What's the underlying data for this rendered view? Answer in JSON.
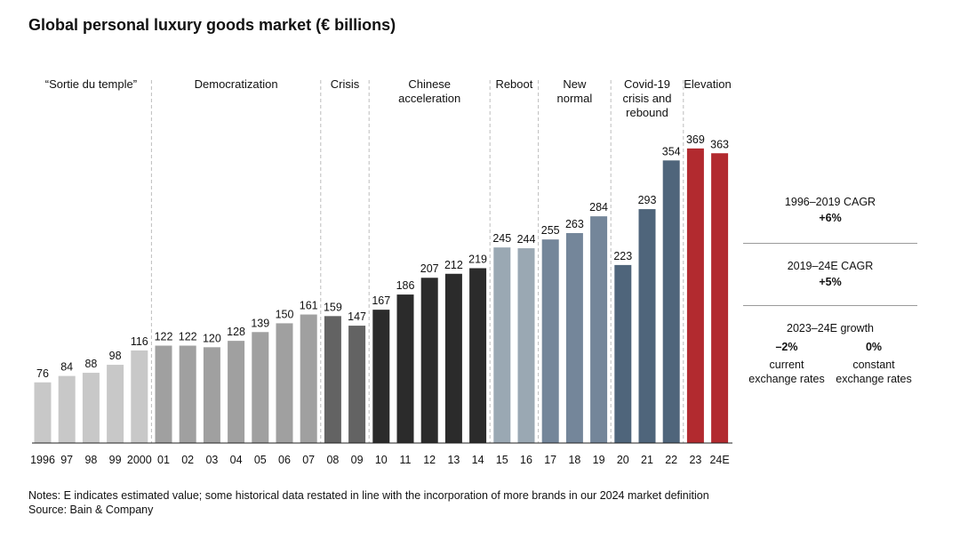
{
  "title": "Global personal luxury goods market (€ billions)",
  "chart_data": {
    "type": "bar",
    "title": "Global personal luxury goods market (€ billions)",
    "categories": [
      "1996",
      "97",
      "98",
      "99",
      "2000",
      "01",
      "02",
      "03",
      "04",
      "05",
      "06",
      "07",
      "08",
      "09",
      "10",
      "11",
      "12",
      "13",
      "14",
      "15",
      "16",
      "17",
      "18",
      "19",
      "20",
      "21",
      "22",
      "23",
      "24E"
    ],
    "values": [
      76,
      84,
      88,
      98,
      116,
      122,
      122,
      120,
      128,
      139,
      150,
      161,
      159,
      147,
      167,
      186,
      207,
      212,
      219,
      245,
      244,
      255,
      263,
      284,
      223,
      293,
      354,
      369,
      363
    ],
    "bar_colors": [
      "#c8c8c8",
      "#c8c8c8",
      "#c8c8c8",
      "#c8c8c8",
      "#c8c8c8",
      "#a0a0a0",
      "#a0a0a0",
      "#a0a0a0",
      "#a0a0a0",
      "#a0a0a0",
      "#a0a0a0",
      "#a0a0a0",
      "#636363",
      "#636363",
      "#2b2b2b",
      "#2b2b2b",
      "#2b2b2b",
      "#2b2b2b",
      "#2b2b2b",
      "#9aa8b3",
      "#9aa8b3",
      "#74869a",
      "#74869a",
      "#74869a",
      "#4f657b",
      "#4f657b",
      "#4f657b",
      "#b22a2f",
      "#b22a2f"
    ],
    "ylim": [
      0,
      380
    ],
    "eras": [
      {
        "lines": [
          "“Sortie du temple”"
        ],
        "start": 0,
        "end": 4
      },
      {
        "lines": [
          "Democratization"
        ],
        "start": 5,
        "end": 11
      },
      {
        "lines": [
          "Crisis"
        ],
        "start": 12,
        "end": 13
      },
      {
        "lines": [
          "Chinese",
          "acceleration"
        ],
        "start": 14,
        "end": 18
      },
      {
        "lines": [
          "Reboot"
        ],
        "start": 19,
        "end": 20
      },
      {
        "lines": [
          "New",
          "normal"
        ],
        "start": 21,
        "end": 23
      },
      {
        "lines": [
          "Covid-19",
          "crisis and",
          "rebound"
        ],
        "start": 24,
        "end": 26
      },
      {
        "lines": [
          "Elevation"
        ],
        "start": 27,
        "end": 28
      }
    ]
  },
  "side_panel": {
    "cagr1": {
      "label": "1996–2019 CAGR",
      "value": "+6%"
    },
    "cagr2": {
      "label": "2019–24E CAGR",
      "value": "+5%"
    },
    "growth": {
      "label": "2023–24E growth",
      "current": {
        "value": "–2%",
        "line1": "current",
        "line2": "exchange rates"
      },
      "constant": {
        "value": "0%",
        "line1": "constant",
        "line2": "exchange rates"
      }
    }
  },
  "notes": {
    "line1": "Notes: E indicates estimated value; some historical data restated in line with the incorporation of more brands in our 2024 market definition",
    "line2": "Source: Bain & Company"
  }
}
